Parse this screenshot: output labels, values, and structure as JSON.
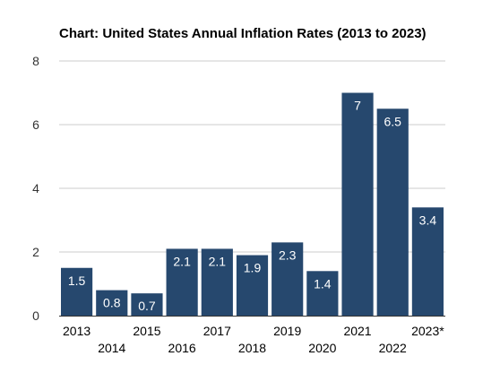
{
  "chart_data": {
    "type": "bar",
    "title": "Chart: United States Annual Inflation Rates (2013 to 2023)",
    "xlabel": "",
    "ylabel": "",
    "categories": [
      "2013",
      "2014",
      "2015",
      "2016",
      "2017",
      "2018",
      "2019",
      "2020",
      "2021",
      "2022",
      "2023*"
    ],
    "values": [
      1.5,
      0.8,
      0.7,
      2.1,
      2.1,
      1.9,
      2.3,
      1.4,
      7,
      6.5,
      3.4
    ],
    "data_labels": [
      "1.5",
      "0.8",
      "0.7",
      "2.1",
      "2.1",
      "1.9",
      "2.3",
      "1.4",
      "7",
      "6.5",
      "3.4"
    ],
    "ylim": [
      0,
      8
    ],
    "yticks": [
      "0",
      "2",
      "4",
      "6",
      "8"
    ],
    "grid": true,
    "legend": "none",
    "colors": {
      "bar": "#26486e",
      "grid": "#cccccc",
      "background": "#ffffff"
    }
  }
}
